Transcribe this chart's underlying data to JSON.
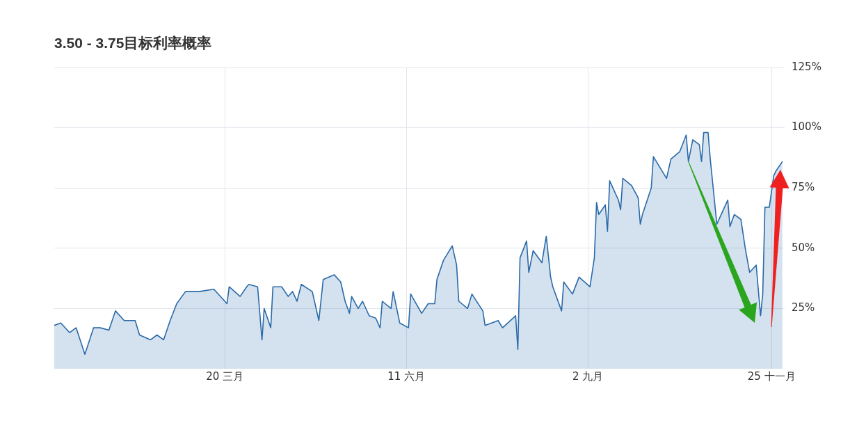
{
  "chart_data": {
    "type": "area",
    "title": "3.50 - 3.75目标利率概率",
    "color": "#2a6aa8",
    "x": [
      "--01-01",
      "--01-04",
      "--01-08",
      "--01-11",
      "--01-15",
      "--01-19",
      "--01-22",
      "--01-26",
      "--01-29",
      "--02-02",
      "--02-07",
      "--02-09",
      "--02-14",
      "--02-17",
      "--02-20",
      "--02-23",
      "--02-26",
      "--03-02",
      "--03-08",
      "--03-15",
      "--03-21",
      "--03-22",
      "--03-27",
      "--03-30",
      "--03-31",
      "--04-04",
      "--04-06",
      "--04-07",
      "--04-10",
      "--04-11",
      "--04-15",
      "--04-18",
      "--04-20",
      "--04-22",
      "--04-24",
      "--04-29",
      "--05-02",
      "--05-04",
      "--05-09",
      "--05-12",
      "--05-14",
      "--05-16",
      "--05-17",
      "--05-20",
      "--05-22",
      "--05-25",
      "--05-28",
      "--05-30",
      "--05-31",
      "--06-04",
      "--06-05",
      "--06-08",
      "--06-12",
      "--06-13",
      "--06-18",
      "--06-21",
      "--06-24",
      "--06-25",
      "--06-28",
      "--07-02",
      "--07-04",
      "--07-05",
      "--07-09",
      "--07-11",
      "--07-16",
      "--07-17",
      "--07-23",
      "--07-25",
      "--07-31",
      "--08-01",
      "--08-02",
      "--08-05",
      "--08-06",
      "--08-08",
      "--08-12",
      "--08-14",
      "--08-16",
      "--08-17",
      "--08-21",
      "--08-22",
      "--08-26",
      "--08-29",
      "--09-03",
      "--09-05",
      "--09-06",
      "--09-07",
      "--09-10",
      "--09-11",
      "--09-12",
      "--09-16",
      "--09-17",
      "--09-18",
      "--09-22",
      "--09-25",
      "--09-26",
      "--09-27",
      "--10-01",
      "--10-02",
      "--10-08",
      "--10-10",
      "--10-14",
      "--10-17",
      "--10-18",
      "--10-20",
      "--10-23",
      "--10-24",
      "--10-25",
      "--10-27",
      "--10-28",
      "--10-30",
      "--10-31",
      "--11-03",
      "--11-05",
      "--11-06",
      "--11-08",
      "--11-11",
      "--11-13",
      "--11-15",
      "--11-18",
      "--11-20",
      "--11-21",
      "--11-22",
      "--11-24",
      "--11-26",
      "--11-27",
      "--11-30"
    ],
    "values": [
      18,
      19,
      15,
      17,
      6,
      17,
      17,
      16,
      24,
      20,
      20,
      14,
      12,
      14,
      12,
      20,
      27,
      32,
      32,
      33,
      27,
      34,
      30,
      34,
      35,
      34,
      12,
      25,
      17,
      34,
      34,
      30,
      32,
      28,
      35,
      32,
      20,
      37,
      39,
      36,
      28,
      23,
      30,
      25,
      28,
      22,
      21,
      17,
      28,
      25,
      32,
      19,
      17,
      31,
      23,
      27,
      27,
      37,
      45,
      51,
      43,
      28,
      25,
      31,
      24,
      18,
      20,
      17,
      22,
      8,
      46,
      53,
      40,
      49,
      44,
      55,
      38,
      34,
      24,
      36,
      31,
      38,
      34,
      46,
      69,
      64,
      68,
      57,
      78,
      70,
      66,
      79,
      76,
      71,
      60,
      64,
      75,
      88,
      79,
      87,
      90,
      97,
      86,
      95,
      93,
      86,
      98,
      98,
      87,
      69,
      60,
      66,
      70,
      59,
      64,
      62,
      50,
      40,
      43,
      22,
      31,
      67,
      67,
      80,
      82,
      86
    ],
    "xlim": [
      "--01-01",
      "--12-01"
    ],
    "xticks": [
      {
        "value": "--03-20",
        "label": "20 三月"
      },
      {
        "value": "--06-11",
        "label": "11 六月"
      },
      {
        "value": "--09-02",
        "label": "2 九月"
      },
      {
        "value": "--11-25",
        "label": "25 十一月"
      }
    ],
    "ylim": [
      0,
      125
    ],
    "yticks": [
      {
        "value": 25,
        "label": "25%"
      },
      {
        "value": 50,
        "label": "50%"
      },
      {
        "value": 75,
        "label": "75%"
      },
      {
        "value": 100,
        "label": "100%"
      },
      {
        "value": 125,
        "label": "125%"
      }
    ],
    "grid": true
  }
}
